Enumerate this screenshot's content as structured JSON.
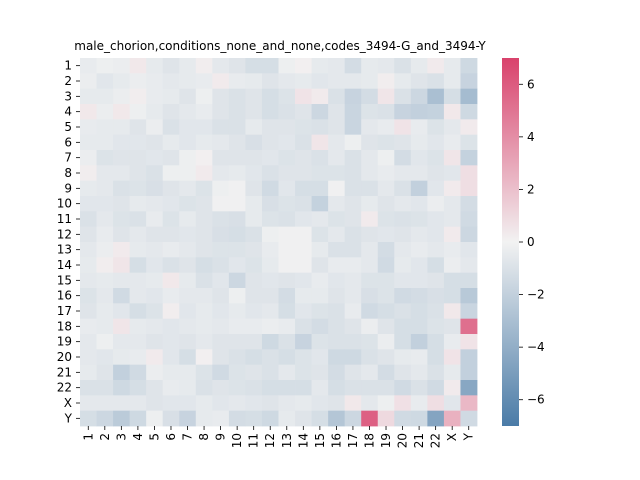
{
  "chart_data": {
    "type": "heatmap",
    "title": "male_chorion,conditions_none_and_none,codes_3494-G_and_3494-Y",
    "xlabel": "",
    "ylabel": "",
    "x_categories": [
      "1",
      "2",
      "3",
      "4",
      "5",
      "6",
      "7",
      "8",
      "9",
      "10",
      "11",
      "12",
      "13",
      "14",
      "15",
      "16",
      "17",
      "18",
      "19",
      "20",
      "21",
      "22",
      "X",
      "Y"
    ],
    "y_categories": [
      "1",
      "2",
      "3",
      "4",
      "5",
      "6",
      "7",
      "8",
      "9",
      "10",
      "11",
      "12",
      "13",
      "14",
      "15",
      "16",
      "17",
      "18",
      "19",
      "20",
      "21",
      "22",
      "X",
      "Y"
    ],
    "colorbar": {
      "vmin": -7,
      "vmax": 7,
      "ticks": [
        -6,
        -4,
        -2,
        0,
        2,
        4,
        6
      ],
      "tick_labels": [
        "−6",
        "−4",
        "−2",
        "0",
        "2",
        "4",
        "6"
      ],
      "colormap": "diverging blue-white-red",
      "color_low": "#4a7ba7",
      "color_mid": "#f2f2f2",
      "color_high": "#d9426c"
    },
    "values": [
      [
        -0.4,
        -0.2,
        -0.3,
        0.4,
        -0.5,
        -0.8,
        -0.5,
        0.2,
        -0.6,
        -0.8,
        -1.2,
        -1.2,
        -0.2,
        0.1,
        -0.5,
        -0.6,
        -1.3,
        -0.5,
        -0.6,
        -1.0,
        -0.5,
        0.3,
        -0.5,
        -1.5
      ],
      [
        -0.3,
        -0.7,
        -0.5,
        -0.3,
        -0.4,
        -0.6,
        -0.5,
        -0.4,
        0.3,
        -0.4,
        -0.5,
        -0.8,
        -0.6,
        -0.5,
        -0.7,
        -0.6,
        -0.6,
        -0.5,
        0.2,
        -0.5,
        -0.8,
        -1.0,
        -0.5,
        -1.8
      ],
      [
        -0.5,
        -0.5,
        -0.3,
        0.2,
        -0.4,
        -0.5,
        -0.8,
        -0.2,
        -0.8,
        -1.0,
        -0.8,
        -1.2,
        -0.9,
        0.6,
        0.3,
        -1.0,
        -1.8,
        -1.3,
        0.5,
        -1.0,
        -1.6,
        -3.0,
        -1.2,
        -3.2
      ],
      [
        0.4,
        -0.3,
        0.4,
        -0.2,
        -0.5,
        -0.8,
        -0.6,
        -0.4,
        -0.8,
        -1.0,
        -0.8,
        -1.2,
        -1.0,
        -0.8,
        -1.6,
        -0.8,
        -1.7,
        -0.9,
        -1.0,
        -1.8,
        -2.0,
        -1.9,
        0.4,
        -1.5
      ],
      [
        -0.4,
        -0.5,
        -0.5,
        -0.8,
        -0.3,
        -1.0,
        -0.7,
        -0.7,
        -1.0,
        -1.0,
        -0.5,
        -0.8,
        -0.8,
        -0.9,
        -1.0,
        -0.8,
        -1.7,
        -0.6,
        -0.4,
        0.6,
        -0.4,
        -0.9,
        -0.6,
        0.3
      ],
      [
        -0.5,
        -0.5,
        -0.7,
        -0.7,
        -0.8,
        -0.5,
        -0.7,
        -0.5,
        -0.6,
        -0.8,
        -1.1,
        -0.8,
        -0.7,
        -1.0,
        0.5,
        -0.6,
        -0.2,
        -0.8,
        -0.9,
        -0.8,
        -0.5,
        -0.7,
        -0.4,
        -0.9
      ],
      [
        -0.3,
        -0.9,
        -0.8,
        -0.8,
        -0.7,
        -0.8,
        -0.2,
        0.1,
        -0.8,
        -0.8,
        -0.8,
        -0.7,
        -0.9,
        -0.8,
        -1.0,
        -0.6,
        -1.0,
        -0.6,
        -0.2,
        -1.3,
        -0.7,
        -0.9,
        0.5,
        -1.9
      ],
      [
        0.2,
        -0.6,
        -0.6,
        -0.8,
        -1.0,
        -0.2,
        -0.2,
        0.3,
        -0.6,
        -0.5,
        -0.7,
        -1.0,
        -0.8,
        -0.8,
        -0.9,
        -0.9,
        -1.0,
        -0.6,
        -0.4,
        -0.6,
        -0.6,
        -0.8,
        -0.7,
        0.8
      ],
      [
        -0.5,
        -0.6,
        -1.0,
        -0.9,
        -1.1,
        -0.8,
        -0.6,
        -0.9,
        -0.2,
        -0.1,
        -0.8,
        -1.4,
        -0.7,
        -1.2,
        -1.2,
        -0.1,
        -1.0,
        -1.0,
        -0.6,
        -1.0,
        -2.0,
        -0.7,
        0.3,
        0.8
      ],
      [
        -0.7,
        -0.7,
        -0.8,
        -0.5,
        -0.6,
        -0.7,
        -0.9,
        -0.8,
        -0.1,
        -0.1,
        -0.5,
        -1.1,
        -0.9,
        -1.0,
        -1.9,
        -0.6,
        -0.8,
        -0.5,
        -0.8,
        -0.6,
        -0.7,
        -0.3,
        -0.6,
        -1.3
      ],
      [
        -1.0,
        -0.6,
        -0.9,
        -1.0,
        -0.4,
        -0.9,
        -0.5,
        -0.8,
        -1.0,
        -1.1,
        -0.5,
        -0.9,
        -1.0,
        -0.7,
        -0.6,
        -0.9,
        -0.8,
        0.3,
        -0.9,
        -1.0,
        -0.9,
        -0.7,
        -0.6,
        -1.4
      ],
      [
        -0.8,
        -0.4,
        -0.8,
        -0.6,
        -0.8,
        -0.8,
        -0.7,
        -0.8,
        -1.1,
        -1.2,
        -1.0,
        -0.2,
        -0.1,
        -0.1,
        -0.9,
        -0.6,
        -1.0,
        -0.8,
        -0.7,
        -0.8,
        -0.6,
        -0.7,
        0.3,
        -1.6
      ],
      [
        -0.6,
        -0.3,
        0.3,
        -0.5,
        -0.6,
        -0.4,
        -0.6,
        -0.8,
        -0.9,
        -0.9,
        -0.8,
        -0.4,
        -0.1,
        -0.1,
        -0.5,
        -1.0,
        -1.0,
        -0.6,
        -1.3,
        -0.6,
        -0.4,
        -0.6,
        -0.4,
        -0.7
      ],
      [
        -0.5,
        0.2,
        0.5,
        -1.2,
        -0.7,
        -1.0,
        -0.8,
        -1.2,
        -1.0,
        -0.7,
        -0.9,
        -0.5,
        -0.1,
        -0.1,
        -0.8,
        -0.4,
        -0.4,
        -0.6,
        -1.4,
        -0.5,
        -0.7,
        -1.2,
        -0.3,
        -0.6
      ],
      [
        -0.6,
        -0.5,
        -0.6,
        -0.6,
        -0.5,
        0.4,
        -0.5,
        -1.0,
        -0.7,
        -1.6,
        -0.8,
        -0.7,
        -0.8,
        -0.7,
        -0.4,
        -0.7,
        -0.6,
        -0.9,
        -0.9,
        -0.7,
        -0.7,
        -0.8,
        -1.2,
        -1.2
      ],
      [
        -0.9,
        -0.6,
        -1.4,
        -0.6,
        -0.7,
        -0.4,
        -0.6,
        -0.6,
        -0.8,
        -0.2,
        -0.8,
        -0.8,
        -1.3,
        -0.5,
        -0.5,
        -0.8,
        -0.6,
        -1.1,
        -0.9,
        -1.4,
        -1.3,
        -1.1,
        -1.2,
        -2.4
      ],
      [
        -0.8,
        -0.5,
        -0.7,
        -1.2,
        -0.9,
        0.2,
        -0.7,
        -0.5,
        -0.7,
        -0.5,
        -0.7,
        -0.6,
        -1.2,
        -0.7,
        -0.9,
        -1.0,
        -0.4,
        -1.4,
        -1.2,
        -1.0,
        -1.2,
        -1.0,
        0.4,
        -1.7
      ],
      [
        -0.4,
        -0.5,
        0.5,
        -0.5,
        -0.6,
        -0.7,
        -0.6,
        -0.5,
        -0.6,
        -0.4,
        -0.4,
        -0.3,
        -0.4,
        -1.0,
        -1.3,
        -1.0,
        -0.8,
        -0.3,
        -0.8,
        -1.2,
        -1.2,
        -0.9,
        -0.8,
        5.2
      ],
      [
        -0.6,
        -0.2,
        -0.6,
        -0.6,
        -0.8,
        -0.7,
        -0.8,
        -0.6,
        -0.8,
        -0.8,
        -0.8,
        -1.5,
        -1.0,
        -1.8,
        -0.9,
        -1.0,
        -1.0,
        -0.9,
        -0.3,
        -1.2,
        -2.0,
        -1.2,
        -0.4,
        0.6
      ],
      [
        -0.6,
        -0.7,
        -0.5,
        -0.4,
        0.3,
        -0.7,
        -1.2,
        0.1,
        -0.8,
        -1.0,
        -1.2,
        -1.0,
        -1.2,
        -0.9,
        -0.7,
        -1.5,
        -1.5,
        -1.0,
        -0.8,
        -0.5,
        -0.4,
        -1.2,
        0.6,
        -2.0
      ],
      [
        -0.5,
        -0.8,
        -2.0,
        -1.4,
        -0.3,
        -0.5,
        -0.5,
        -0.9,
        -1.4,
        -0.9,
        -0.8,
        -1.0,
        -0.6,
        -0.9,
        -0.8,
        -1.3,
        -0.8,
        -0.6,
        -1.3,
        -0.8,
        -0.6,
        -1.0,
        -0.5,
        -2.0
      ],
      [
        -1.0,
        -1.0,
        -1.5,
        -1.2,
        -0.8,
        -0.4,
        -0.5,
        -1.0,
        -0.8,
        -0.9,
        -1.0,
        -1.2,
        -1.2,
        -1.2,
        -0.6,
        -1.2,
        -1.0,
        -1.0,
        -1.0,
        -1.4,
        -1.0,
        -1.4,
        0.3,
        -4.4
      ],
      [
        -0.6,
        -0.6,
        -0.6,
        -0.6,
        -0.8,
        -0.7,
        -0.7,
        -0.5,
        -0.7,
        -0.6,
        -0.7,
        -0.8,
        -0.6,
        -0.5,
        -0.7,
        -0.8,
        0.4,
        -0.6,
        -0.2,
        0.7,
        -0.4,
        0.8,
        -0.7,
        2.3
      ],
      [
        -1.2,
        -1.6,
        -2.3,
        -1.5,
        -0.2,
        -1.1,
        -1.8,
        -0.5,
        -0.4,
        -1.3,
        -1.2,
        -1.5,
        -0.5,
        -0.8,
        -1.2,
        -2.6,
        -1.6,
        5.8,
        1.0,
        -1.4,
        -1.5,
        -4.6,
        2.6,
        -1.4
      ]
    ]
  }
}
